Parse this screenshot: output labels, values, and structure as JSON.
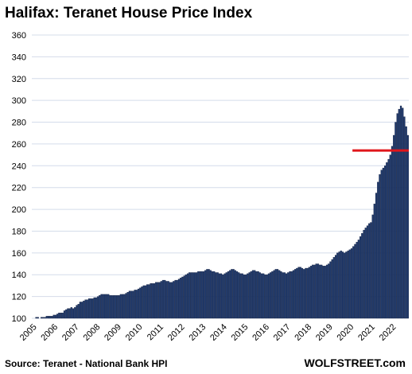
{
  "chart_data": {
    "type": "bar",
    "title": "Halifax: Teranet House Price Index",
    "source": "Source: Teranet - National Bank HPI",
    "brand": "WOLFSTREET.com",
    "xlabel": "",
    "ylabel": "",
    "ylim": [
      100,
      360
    ],
    "yticks": [
      100,
      120,
      140,
      160,
      180,
      200,
      220,
      240,
      260,
      280,
      300,
      320,
      340,
      360
    ],
    "xticks": [
      "2005",
      "2006",
      "2007",
      "2008",
      "2009",
      "2010",
      "2011",
      "2012",
      "2013",
      "2014",
      "2015",
      "2016",
      "2017",
      "2018",
      "2019",
      "2020",
      "2021",
      "2022"
    ],
    "grid": true,
    "legend": "none",
    "frequency": "monthly",
    "first_month": "2005-01",
    "reference_line": {
      "value": 254,
      "from_month": "2020-03"
    },
    "colors": {
      "bar": "#1f3a6e",
      "bar_edge": "#0b1530",
      "reference_line": "#e0161b",
      "grid": "#d4dcea"
    },
    "series": [
      {
        "values": [
          100,
          100,
          101,
          101,
          100,
          101,
          101,
          101,
          102,
          102,
          102,
          102,
          103,
          103,
          104,
          105,
          105,
          105,
          107,
          108,
          109,
          109,
          110,
          109,
          110,
          112,
          113,
          115,
          115,
          116,
          117,
          117,
          118,
          118,
          118,
          119,
          119,
          120,
          121,
          122,
          122,
          122,
          122,
          122,
          121,
          121,
          121,
          121,
          121,
          121,
          122,
          122,
          122,
          123,
          124,
          125,
          125,
          125,
          126,
          126,
          127,
          128,
          129,
          130,
          130,
          131,
          131,
          132,
          132,
          132,
          133,
          133,
          133,
          134,
          135,
          135,
          134,
          134,
          133,
          133,
          134,
          135,
          135,
          136,
          137,
          138,
          139,
          140,
          141,
          142,
          142,
          142,
          142,
          142,
          143,
          143,
          143,
          143,
          144,
          145,
          145,
          144,
          143,
          143,
          142,
          142,
          141,
          141,
          140,
          141,
          142,
          143,
          144,
          145,
          145,
          144,
          143,
          142,
          141,
          141,
          140,
          140,
          141,
          142,
          143,
          144,
          144,
          143,
          143,
          142,
          141,
          141,
          140,
          140,
          141,
          142,
          143,
          144,
          145,
          145,
          144,
          143,
          142,
          142,
          141,
          142,
          143,
          143,
          144,
          145,
          146,
          147,
          147,
          146,
          145,
          146,
          146,
          147,
          148,
          149,
          149,
          150,
          150,
          149,
          149,
          148,
          148,
          149,
          150,
          152,
          154,
          156,
          158,
          160,
          161,
          162,
          161,
          160,
          161,
          162,
          163,
          164,
          166,
          168,
          170,
          172,
          175,
          178,
          181,
          183,
          185,
          187,
          188,
          195,
          205,
          215,
          225,
          232,
          236,
          238,
          240,
          243,
          246,
          250,
          258,
          268,
          280,
          288,
          292,
          295,
          293,
          285,
          276,
          268
        ]
      }
    ]
  }
}
